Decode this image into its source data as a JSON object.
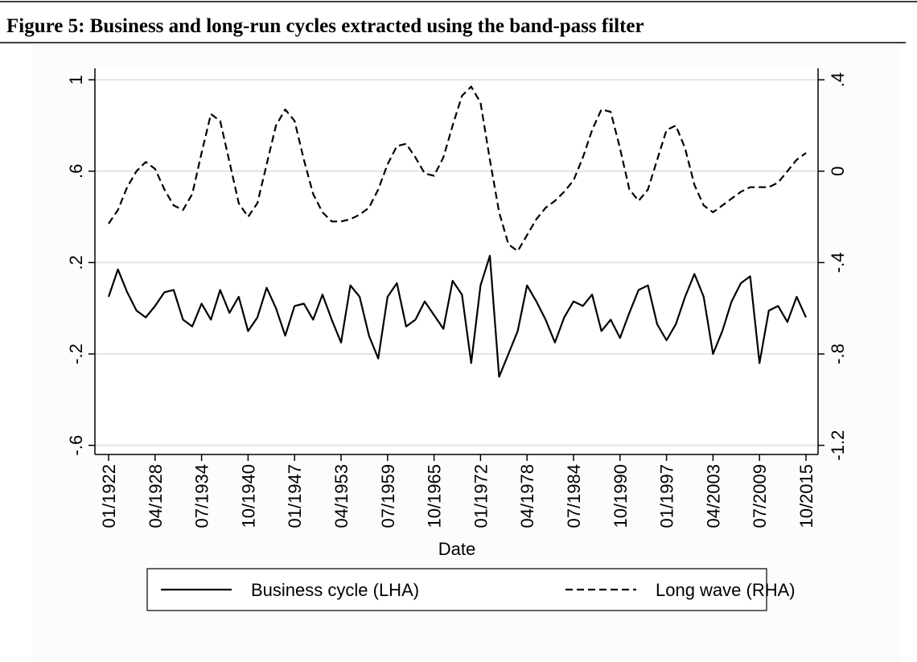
{
  "chart_data": {
    "type": "line",
    "title": "Figure 5: Business and long-run cycles extracted using the band-pass filter",
    "xlabel": "Date",
    "x": [
      "01/1922",
      "04/1923",
      "07/1924",
      "10/1925",
      "01/1927",
      "04/1928",
      "07/1929",
      "10/1930",
      "01/1932",
      "04/1933",
      "07/1934",
      "10/1935",
      "01/1937",
      "04/1938",
      "07/1939",
      "10/1940",
      "01/1942",
      "04/1943",
      "07/1944",
      "10/1945",
      "01/1947",
      "04/1948",
      "07/1949",
      "10/1950",
      "01/1952",
      "04/1953",
      "07/1954",
      "10/1955",
      "01/1957",
      "04/1958",
      "07/1959",
      "10/1960",
      "01/1962",
      "04/1963",
      "07/1964",
      "10/1965",
      "01/1967",
      "04/1968",
      "07/1969",
      "10/1970",
      "01/1972",
      "04/1973",
      "07/1974",
      "10/1975",
      "01/1977",
      "04/1978",
      "07/1979",
      "10/1980",
      "01/1982",
      "04/1983",
      "07/1984",
      "10/1985",
      "01/1987",
      "04/1988",
      "07/1989",
      "10/1990",
      "01/1992",
      "04/1993",
      "07/1994",
      "10/1995",
      "01/1997",
      "04/1998",
      "07/1999",
      "10/2000",
      "01/2002",
      "04/2003",
      "07/2004",
      "10/2005",
      "01/2007",
      "04/2008",
      "07/2009",
      "10/2010",
      "01/2012",
      "04/2013",
      "07/2014",
      "10/2015"
    ],
    "xticks": [
      "01/1922",
      "04/1928",
      "07/1934",
      "10/1940",
      "01/1947",
      "04/1953",
      "07/1959",
      "10/1965",
      "01/1972",
      "04/1978",
      "07/1984",
      "10/1990",
      "01/1997",
      "04/2003",
      "07/2009",
      "10/2015"
    ],
    "series": [
      {
        "name": "Business cycle (LHA)",
        "color": "#000000",
        "dash": "solid",
        "axis": "y",
        "values": [
          0.05,
          0.17,
          0.07,
          -0.01,
          -0.04,
          0.01,
          0.07,
          0.08,
          -0.05,
          -0.08,
          0.02,
          -0.05,
          0.08,
          -0.02,
          0.05,
          -0.1,
          -0.04,
          0.09,
          0.0,
          -0.12,
          0.01,
          0.02,
          -0.05,
          0.06,
          -0.05,
          -0.15,
          0.1,
          0.05,
          -0.12,
          -0.22,
          0.05,
          0.11,
          -0.08,
          -0.05,
          0.03,
          -0.03,
          -0.09,
          0.12,
          0.06,
          -0.24,
          0.1,
          0.23,
          -0.3,
          -0.2,
          -0.1,
          0.1,
          0.03,
          -0.05,
          -0.15,
          -0.04,
          0.03,
          0.01,
          0.06,
          -0.1,
          -0.05,
          -0.13,
          -0.02,
          0.08,
          0.1,
          -0.07,
          -0.14,
          -0.07,
          0.05,
          0.15,
          0.05,
          -0.2,
          -0.1,
          0.03,
          0.11,
          0.14,
          -0.24,
          -0.01,
          0.01,
          -0.06,
          0.05,
          -0.04
        ]
      },
      {
        "name": "Long wave (RHA)",
        "color": "#000000",
        "dash": "dashed",
        "axis": "y2",
        "values": [
          -0.23,
          -0.17,
          -0.07,
          0.0,
          0.04,
          0.01,
          -0.08,
          -0.15,
          -0.17,
          -0.1,
          0.08,
          0.25,
          0.22,
          0.04,
          -0.14,
          -0.2,
          -0.14,
          0.03,
          0.2,
          0.27,
          0.22,
          0.05,
          -0.1,
          -0.18,
          -0.22,
          -0.22,
          -0.21,
          -0.19,
          -0.16,
          -0.08,
          0.03,
          0.11,
          0.12,
          0.06,
          -0.01,
          -0.02,
          0.06,
          0.2,
          0.33,
          0.37,
          0.3,
          0.05,
          -0.18,
          -0.32,
          -0.35,
          -0.28,
          -0.21,
          -0.16,
          -0.13,
          -0.09,
          -0.04,
          0.06,
          0.18,
          0.27,
          0.26,
          0.1,
          -0.08,
          -0.13,
          -0.08,
          0.05,
          0.18,
          0.2,
          0.1,
          -0.06,
          -0.15,
          -0.18,
          -0.15,
          -0.12,
          -0.09,
          -0.07,
          -0.07,
          -0.07,
          -0.05,
          0.0,
          0.05,
          0.08
        ]
      }
    ],
    "ylim": [
      -0.64,
      1.05
    ],
    "yticks": [
      {
        "value": -0.6,
        "label": "-.6"
      },
      {
        "value": -0.2,
        "label": "-.2"
      },
      {
        "value": 0.2,
        "label": ".2"
      },
      {
        "value": 0.6,
        "label": ".6"
      },
      1
    ],
    "y2lim": [
      -1.24,
      0.45
    ],
    "y2ticks": [
      -1.2,
      {
        "value": -0.8,
        "label": "-.8"
      },
      {
        "value": -0.4,
        "label": "-.4"
      },
      0,
      {
        "value": 0.4,
        "label": ".4"
      }
    ],
    "grid": true,
    "legend": "bottom"
  }
}
